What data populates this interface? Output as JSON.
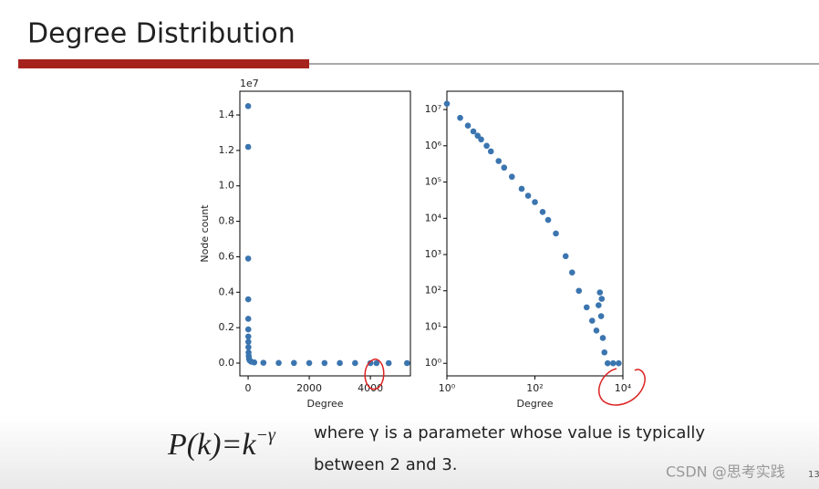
{
  "slide": {
    "title": "Degree Distribution",
    "formula": {
      "base": "P(k)=k",
      "exponent": "−γ"
    },
    "description": [
      "where γ is a parameter whose value is typically",
      "between 2 and 3."
    ],
    "watermark": "CSDN @思考实践",
    "page_number": "13"
  },
  "chart_data": [
    {
      "type": "scatter",
      "x_label": "Degree",
      "y_label": "Node count",
      "y_offset_label": "1e7",
      "color": "#3b75af",
      "x": [
        1,
        2,
        3,
        4,
        5,
        6,
        7,
        8,
        10,
        15,
        20,
        30,
        50,
        100,
        200,
        500,
        1000,
        1500,
        2000,
        2500,
        3000,
        3500,
        4000,
        4200,
        4600,
        5200
      ],
      "values": [
        1.45,
        1.22,
        0.59,
        0.36,
        0.25,
        0.19,
        0.15,
        0.12,
        0.09,
        0.06,
        0.04,
        0.025,
        0.015,
        0.008,
        0.004,
        0.002,
        0.001,
        0.0008,
        0.0005,
        0.0004,
        0.0003,
        0.0002,
        0.0001,
        0,
        0,
        0
      ],
      "xlim": [
        -270,
        5310
      ],
      "ylim": [
        -0.072,
        1.534
      ],
      "xticks": [
        0,
        2000,
        4000
      ],
      "yticks": [
        {
          "value": 0,
          "label": "0.0"
        },
        0.2,
        0.4,
        0.6,
        0.8,
        {
          "value": 1,
          "label": "1.0"
        },
        1.2,
        1.4
      ]
    },
    {
      "type": "scatter",
      "x_label": "Degree",
      "log_x": true,
      "log_y": true,
      "color": "#3b75af",
      "x": [
        1,
        2,
        3,
        4,
        5,
        6,
        8,
        10,
        15,
        20,
        30,
        50,
        70,
        100,
        150,
        200,
        300,
        500,
        700,
        1000,
        1500,
        2000,
        2500,
        2800,
        3000,
        3200,
        3300,
        3500,
        3800,
        4500,
        6000,
        8000
      ],
      "values": [
        14500000,
        5900000,
        3600000,
        2500000,
        1900000,
        1500000,
        1000000,
        700000,
        380000,
        250000,
        140000,
        65000,
        42000,
        28000,
        15000,
        9000,
        3800,
        900,
        320,
        100,
        35,
        15,
        8,
        40,
        90,
        20,
        60,
        5,
        2,
        1,
        1,
        1
      ],
      "xlim": [
        1,
        10000
      ],
      "ylim": [
        0.45,
        32000000
      ],
      "xticks": [
        {
          "value": 1,
          "label": "10⁰"
        },
        {
          "value": 100,
          "label": "10²"
        },
        {
          "value": 10000,
          "label": "10⁴"
        }
      ],
      "yticks": [
        {
          "value": 1,
          "label": "10⁰"
        },
        {
          "value": 10,
          "label": "10¹"
        },
        {
          "value": 100,
          "label": "10²"
        },
        {
          "value": 1000,
          "label": "10³"
        },
        {
          "value": 10000,
          "label": "10⁴"
        },
        {
          "value": 100000,
          "label": "10⁵"
        },
        {
          "value": 1000000,
          "label": "10⁶"
        },
        {
          "value": 10000000,
          "label": "10⁷"
        }
      ]
    }
  ]
}
